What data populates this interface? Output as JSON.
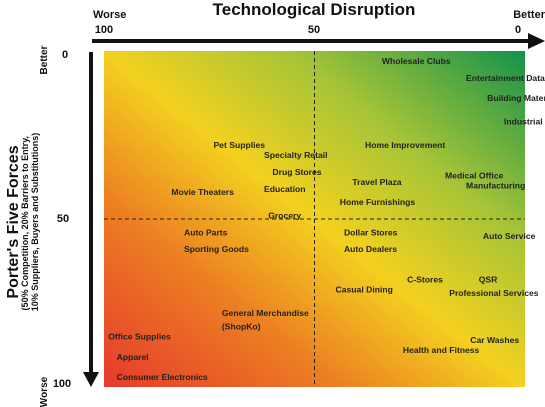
{
  "chart_data": {
    "type": "scatter",
    "title": "Technological Disruption",
    "xlabel": "Technological Disruption",
    "ylabel": "Porter's Five Forces",
    "ylabel_sub": "(50% Competition, 20% Barriers to Entry, 10% Suppliers, Buyers and Substitutions)",
    "x_end_labels": {
      "start": "Worse",
      "end": "Better"
    },
    "y_end_labels": {
      "start": "Better",
      "end": "Worse"
    },
    "x_ticks": [
      "100",
      "50",
      "0"
    ],
    "y_ticks": [
      "0",
      "50",
      "100"
    ],
    "xlim": [
      100,
      0
    ],
    "ylim": [
      0,
      100
    ],
    "x_reversed": true,
    "y_reversed": true,
    "midlines": {
      "x": 50,
      "y": 50
    },
    "background": "diagonal gradient: red (bottom-left) to yellow to green (top-right)",
    "points": [
      {
        "label": "Wholesale Clubs",
        "x": 34,
        "y": 3
      },
      {
        "label": "Entertainment Data Centers",
        "x": 14,
        "y": 8
      },
      {
        "label": "Building Materials",
        "x": 9,
        "y": 14
      },
      {
        "label": "Industrial",
        "x": 5,
        "y": 21
      },
      {
        "label": "Pet Supplies",
        "x": 74,
        "y": 28
      },
      {
        "label": "Home Improvement",
        "x": 38,
        "y": 28
      },
      {
        "label": "Specialty Retail",
        "x": 62,
        "y": 31
      },
      {
        "label": "Drug Stores",
        "x": 60,
        "y": 36
      },
      {
        "label": "Medical Office",
        "x": 19,
        "y": 37
      },
      {
        "label": "Travel Plaza",
        "x": 41,
        "y": 39
      },
      {
        "label": "Manufacturing",
        "x": 14,
        "y": 40
      },
      {
        "label": "Movie Theaters",
        "x": 84,
        "y": 42
      },
      {
        "label": "Education",
        "x": 62,
        "y": 41
      },
      {
        "label": "Home Furnishings",
        "x": 44,
        "y": 45
      },
      {
        "label": "Grocery",
        "x": 61,
        "y": 49
      },
      {
        "label": "Auto Parts",
        "x": 81,
        "y": 54
      },
      {
        "label": "Dollar Stores",
        "x": 43,
        "y": 54
      },
      {
        "label": "Auto Service",
        "x": 10,
        "y": 55
      },
      {
        "label": "Sporting Goods",
        "x": 81,
        "y": 59
      },
      {
        "label": "Auto Dealers",
        "x": 43,
        "y": 59
      },
      {
        "label": "C-Stores",
        "x": 28,
        "y": 68
      },
      {
        "label": "QSR",
        "x": 11,
        "y": 68
      },
      {
        "label": "Casual Dining",
        "x": 45,
        "y": 71
      },
      {
        "label": "Professional Services",
        "x": 18,
        "y": 72
      },
      {
        "label": "General Merchandise",
        "x": 72,
        "y": 78
      },
      {
        "label": "(ShopKo)",
        "x": 72,
        "y": 82
      },
      {
        "label": "Office Supplies",
        "x": 99,
        "y": 85
      },
      {
        "label": "Car Washes",
        "x": 13,
        "y": 86
      },
      {
        "label": "Health and Fitness",
        "x": 29,
        "y": 89
      },
      {
        "label": "Apparel",
        "x": 97,
        "y": 91
      },
      {
        "label": "Consumer Electronics",
        "x": 97,
        "y": 97
      }
    ]
  },
  "colors": {
    "red": "#e8402a",
    "yellow": "#f2d21e",
    "green": "#1e9a4a",
    "axis": "#111111"
  }
}
